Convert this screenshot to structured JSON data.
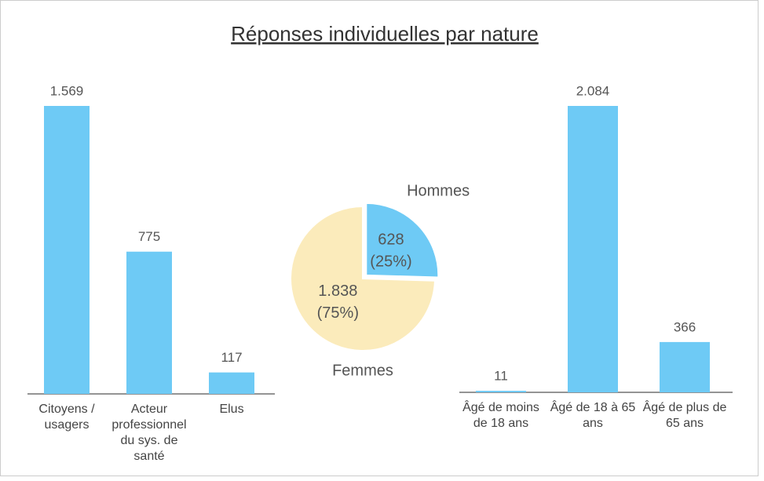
{
  "title": "Réponses individuelles par nature",
  "chart_data": [
    {
      "type": "bar",
      "categories": [
        "Citoyens / usagers",
        "Acteur professionnel du sys. de santé",
        "Elus"
      ],
      "values": [
        1569,
        775,
        117
      ],
      "value_labels": [
        "1.569",
        "775",
        "117"
      ],
      "color": "#6ecaf5"
    },
    {
      "type": "pie",
      "categories": [
        "Hommes",
        "Femmes"
      ],
      "values": [
        628,
        1838
      ],
      "value_labels": [
        [
          "628",
          "(25%)"
        ],
        [
          "1.838",
          "(75%)"
        ]
      ],
      "colors": [
        "#6ecaf5",
        "#fbebbb"
      ]
    },
    {
      "type": "bar",
      "categories": [
        "Âgé de moins de 18 ans",
        "Âgé de 18 à 65 ans",
        "Âgé de plus de 65 ans"
      ],
      "values": [
        11,
        2084,
        366
      ],
      "value_labels": [
        "11",
        "2.084",
        "366"
      ],
      "color": "#6ecaf5"
    }
  ]
}
